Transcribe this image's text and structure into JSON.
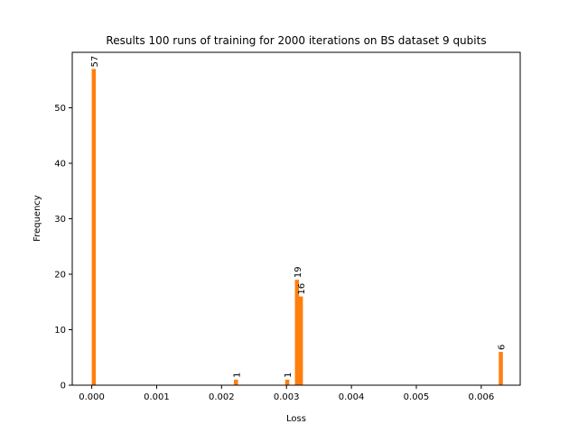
{
  "chart_data": {
    "type": "bar",
    "title": "Results 100 runs of training for 2000 iterations on BS dataset 9 qubits",
    "xlabel": "Loss",
    "ylabel": "Frequency",
    "xlim": [
      -0.0003,
      0.0066
    ],
    "ylim": [
      0,
      60
    ],
    "xticks": [
      "0.000",
      "0.001",
      "0.002",
      "0.003",
      "0.004",
      "0.005",
      "0.006"
    ],
    "yticks": [
      "0",
      "10",
      "20",
      "30",
      "40",
      "50"
    ],
    "bar_color": "#ff7f0e",
    "bars": [
      {
        "x": 0.0,
        "value": 57,
        "label": "57"
      },
      {
        "x": 0.00219,
        "value": 1,
        "label": "1"
      },
      {
        "x": 0.00298,
        "value": 1,
        "label": "1"
      },
      {
        "x": 0.00313,
        "value": 19,
        "label": "19"
      },
      {
        "x": 0.00319,
        "value": 16,
        "label": "16"
      },
      {
        "x": 0.00627,
        "value": 6,
        "label": "6"
      }
    ],
    "bin_width": 6.3e-05,
    "grid": false
  }
}
